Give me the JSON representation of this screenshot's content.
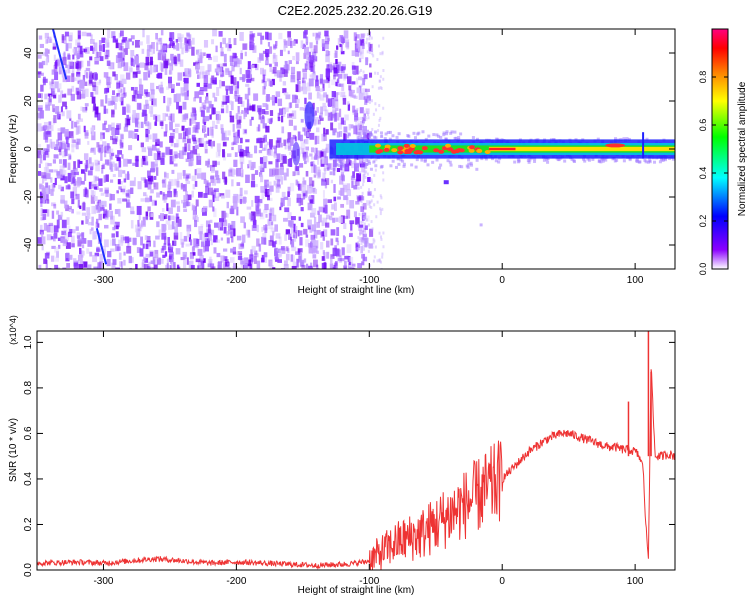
{
  "title": "C2E2.2025.232.20.26.G19",
  "spectrogram": {
    "xlabel": "Height of straight line (km)",
    "ylabel": "Frequency (Hz)",
    "xlim": [
      -350,
      130
    ],
    "ylim": [
      -50,
      50
    ],
    "xticks": [
      -300,
      -200,
      -100,
      0,
      100
    ],
    "yticks": [
      -40,
      -20,
      0,
      20,
      40
    ],
    "colorbar": {
      "label": "Normalized spectral amplitude",
      "ticks": [
        0.0,
        0.2,
        0.4,
        0.6,
        0.8
      ],
      "tick_labels": [
        "0.0",
        "0.2",
        "0.4",
        "0.6",
        "0.8"
      ],
      "colormap": [
        "#ffffff",
        "#8b00ff",
        "#0000ff",
        "#00ffff",
        "#00ff00",
        "#ffff00",
        "#ff8000",
        "#ff0000",
        "#ff0080"
      ]
    }
  },
  "chart_data": {
    "type": "line",
    "xlabel": "Height of straight line (km)",
    "ylabel": "SNR (10 * v/v)",
    "y_multiplier": "(x10^4)",
    "xlim": [
      -350,
      130
    ],
    "ylim": [
      0,
      1.05
    ],
    "xticks": [
      -300,
      -200,
      -100,
      0,
      100
    ],
    "yticks": [
      0.0,
      0.2,
      0.4,
      0.6,
      0.8,
      1.0
    ],
    "ytick_labels": [
      "0.0",
      "0.2",
      "0.4",
      "0.6",
      "0.8",
      "1.0"
    ],
    "color": "#ee3333",
    "series": [
      {
        "x": [
          -350,
          -320,
          -300,
          -280,
          -260,
          -240,
          -220,
          -200,
          -180,
          -160,
          -140,
          -120,
          -110,
          -100,
          -95,
          -90,
          -85,
          -80,
          -75,
          -70,
          -65,
          -60,
          -55,
          -50,
          -45,
          -40,
          -35,
          -30,
          -25,
          -20,
          -15,
          -10,
          -5,
          0,
          5,
          10,
          15,
          20,
          25,
          30,
          35,
          40,
          45,
          50,
          55,
          60,
          65,
          70,
          75,
          80,
          85,
          90,
          95,
          100,
          103,
          106,
          108,
          110,
          112,
          115,
          120,
          125,
          130
        ],
        "y": [
          0.03,
          0.035,
          0.03,
          0.04,
          0.05,
          0.04,
          0.03,
          0.035,
          0.03,
          0.025,
          0.02,
          0.025,
          0.03,
          0.04,
          0.06,
          0.08,
          0.1,
          0.12,
          0.13,
          0.14,
          0.15,
          0.16,
          0.18,
          0.2,
          0.22,
          0.24,
          0.26,
          0.28,
          0.3,
          0.32,
          0.34,
          0.36,
          0.38,
          0.4,
          0.43,
          0.46,
          0.49,
          0.52,
          0.54,
          0.56,
          0.58,
          0.59,
          0.6,
          0.6,
          0.59,
          0.58,
          0.57,
          0.56,
          0.55,
          0.54,
          0.54,
          0.53,
          0.53,
          0.52,
          0.5,
          0.45,
          0.2,
          0.05,
          0.9,
          0.5,
          0.5,
          0.51,
          0.5
        ]
      }
    ],
    "spikes": [
      {
        "x": 95,
        "y": 0.74
      },
      {
        "x": 110,
        "y": 1.05
      },
      {
        "x": 112,
        "y": 0.87
      }
    ]
  }
}
